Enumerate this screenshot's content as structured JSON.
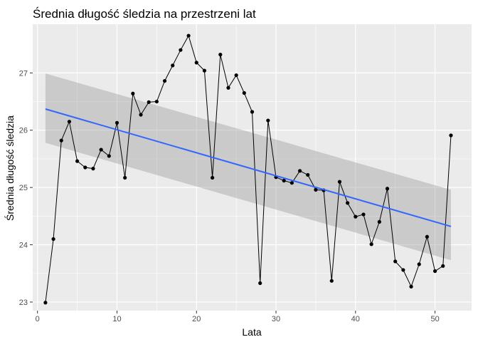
{
  "chart_data": {
    "type": "line",
    "title": "Średnia długość śledzia na przestrzeni lat",
    "xlabel": "Lata",
    "ylabel": "Średnia długość śledzia",
    "xlim": [
      -0.6,
      54.6
    ],
    "ylim": [
      22.85,
      27.85
    ],
    "x_ticks": [
      0,
      10,
      20,
      30,
      40,
      50
    ],
    "y_ticks": [
      23,
      24,
      25,
      26,
      27
    ],
    "grid": true,
    "legend": "none",
    "series": [
      {
        "x": [
          1,
          2,
          3,
          4,
          5,
          6,
          7,
          8,
          9,
          10,
          11,
          12,
          13,
          14,
          15,
          16,
          17,
          18,
          19,
          20,
          21,
          22,
          23,
          24,
          25,
          26,
          27,
          28,
          29,
          30,
          31,
          32,
          33,
          34,
          35,
          36,
          37,
          38,
          39,
          40,
          41,
          42,
          43,
          44,
          45,
          46,
          47,
          48,
          49,
          50,
          51,
          52
        ],
        "values": [
          22.99,
          24.1,
          25.82,
          26.15,
          25.46,
          25.35,
          25.33,
          25.66,
          25.55,
          26.13,
          25.17,
          26.64,
          26.27,
          26.49,
          26.5,
          26.86,
          27.13,
          27.4,
          27.65,
          27.18,
          27.04,
          25.17,
          27.32,
          26.74,
          26.96,
          26.65,
          26.32,
          23.33,
          26.17,
          25.18,
          25.12,
          25.08,
          25.29,
          25.22,
          24.96,
          24.95,
          23.37,
          25.1,
          24.73,
          24.49,
          24.53,
          24.01,
          24.4,
          24.98,
          23.71,
          23.56,
          23.27,
          23.66,
          24.14,
          23.54,
          23.63,
          25.91
        ]
      }
    ],
    "trend": {
      "method": "lm",
      "x": [
        1,
        52
      ],
      "values": [
        26.37,
        24.32
      ],
      "ci_lower": [
        25.78,
        23.73
      ],
      "ci_upper": [
        26.99,
        24.96
      ]
    },
    "colors": {
      "panel": "#EBEBEB",
      "grid": "#FFFFFF",
      "line": "#000000",
      "point": "#000000",
      "trend": "#3366FF",
      "ribbon": "#999999"
    }
  }
}
